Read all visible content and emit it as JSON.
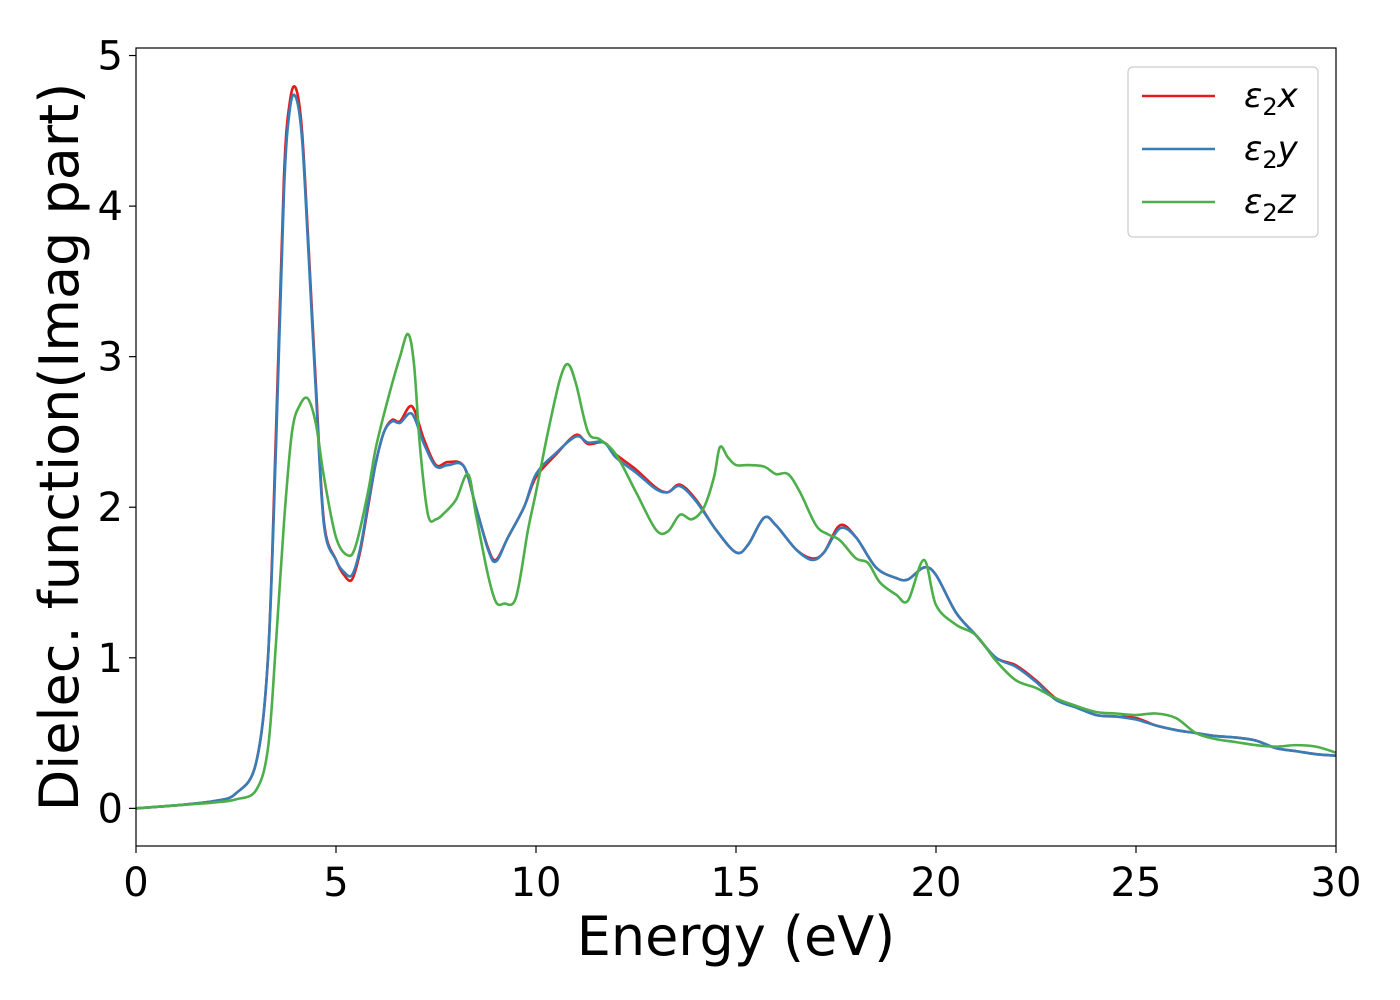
{
  "chart_data": {
    "type": "line",
    "title": "",
    "xlabel": "Energy (eV)",
    "ylabel": "Dielec. function(Imag part)",
    "xlim": [
      0,
      30
    ],
    "ylim": [
      -0.25,
      5.05
    ],
    "xticks": [
      0,
      5,
      10,
      15,
      20,
      25,
      30
    ],
    "yticks": [
      0,
      1,
      2,
      3,
      4,
      5
    ],
    "grid": false,
    "legend_position": "top-right",
    "series": [
      {
        "name": "ε2x",
        "legend_base": "ε",
        "legend_sub": "2",
        "legend_suffix": "x",
        "color": "#e41a1c",
        "x": [
          0,
          1,
          2,
          2.5,
          3,
          3.3,
          3.5,
          3.7,
          3.85,
          4.0,
          4.15,
          4.3,
          4.5,
          4.7,
          5.0,
          5.2,
          5.4,
          5.6,
          5.8,
          6.0,
          6.2,
          6.4,
          6.6,
          6.9,
          7.2,
          7.5,
          7.8,
          8.2,
          8.5,
          8.8,
          9.0,
          9.3,
          9.7,
          10.0,
          10.5,
          11.0,
          11.3,
          11.7,
          12.0,
          12.5,
          13.0,
          13.3,
          13.6,
          14.0,
          14.5,
          15.0,
          15.3,
          15.7,
          16.0,
          16.5,
          16.9,
          17.2,
          17.6,
          18.0,
          18.5,
          19.0,
          19.3,
          19.7,
          20.0,
          20.5,
          21.0,
          21.5,
          22.0,
          22.5,
          23.0,
          23.5,
          24.0,
          24.5,
          25.0,
          25.5,
          26.0,
          26.5,
          27.0,
          27.5,
          28.0,
          28.5,
          29.0,
          29.5,
          30.0
        ],
        "y": [
          0.0,
          0.02,
          0.05,
          0.1,
          0.3,
          1.0,
          2.5,
          4.2,
          4.7,
          4.78,
          4.5,
          3.8,
          2.8,
          1.9,
          1.65,
          1.55,
          1.52,
          1.7,
          2.0,
          2.3,
          2.5,
          2.58,
          2.57,
          2.67,
          2.45,
          2.28,
          2.3,
          2.27,
          2.0,
          1.73,
          1.65,
          1.8,
          2.0,
          2.2,
          2.35,
          2.48,
          2.42,
          2.43,
          2.35,
          2.25,
          2.13,
          2.1,
          2.15,
          2.05,
          1.85,
          1.7,
          1.75,
          1.93,
          1.88,
          1.72,
          1.66,
          1.7,
          1.88,
          1.8,
          1.6,
          1.53,
          1.52,
          1.6,
          1.55,
          1.3,
          1.15,
          1.0,
          0.95,
          0.85,
          0.73,
          0.68,
          0.62,
          0.61,
          0.6,
          0.55,
          0.52,
          0.5,
          0.48,
          0.47,
          0.45,
          0.4,
          0.38,
          0.36,
          0.35
        ]
      },
      {
        "name": "ε2y",
        "legend_base": "ε",
        "legend_sub": "2",
        "legend_suffix": "y",
        "color": "#377eb8",
        "x": [
          0,
          1,
          2,
          2.5,
          3,
          3.3,
          3.5,
          3.7,
          3.85,
          4.0,
          4.15,
          4.3,
          4.5,
          4.7,
          5.0,
          5.2,
          5.4,
          5.6,
          5.8,
          6.0,
          6.2,
          6.4,
          6.6,
          6.9,
          7.2,
          7.5,
          7.8,
          8.2,
          8.5,
          8.8,
          9.0,
          9.3,
          9.7,
          10.0,
          10.5,
          11.0,
          11.3,
          11.7,
          12.0,
          12.5,
          13.0,
          13.3,
          13.6,
          14.0,
          14.5,
          15.0,
          15.3,
          15.7,
          16.0,
          16.5,
          16.9,
          17.2,
          17.6,
          18.0,
          18.5,
          19.0,
          19.3,
          19.7,
          20.0,
          20.5,
          21.0,
          21.5,
          22.0,
          22.5,
          23.0,
          23.5,
          24.0,
          24.5,
          25.0,
          25.5,
          26.0,
          26.5,
          27.0,
          27.5,
          28.0,
          28.5,
          29.0,
          29.5,
          30.0
        ],
        "y": [
          0.0,
          0.02,
          0.05,
          0.1,
          0.3,
          1.0,
          2.4,
          4.1,
          4.65,
          4.72,
          4.45,
          3.75,
          2.75,
          1.88,
          1.65,
          1.57,
          1.55,
          1.72,
          2.02,
          2.3,
          2.5,
          2.57,
          2.56,
          2.62,
          2.42,
          2.27,
          2.28,
          2.27,
          2.0,
          1.72,
          1.64,
          1.8,
          2.0,
          2.22,
          2.36,
          2.47,
          2.43,
          2.43,
          2.33,
          2.23,
          2.12,
          2.1,
          2.14,
          2.04,
          1.85,
          1.7,
          1.75,
          1.93,
          1.88,
          1.72,
          1.65,
          1.7,
          1.86,
          1.8,
          1.6,
          1.53,
          1.52,
          1.6,
          1.55,
          1.3,
          1.15,
          1.0,
          0.94,
          0.84,
          0.72,
          0.67,
          0.62,
          0.61,
          0.59,
          0.55,
          0.52,
          0.5,
          0.48,
          0.47,
          0.45,
          0.4,
          0.38,
          0.36,
          0.35
        ]
      },
      {
        "name": "ε2z",
        "legend_base": "ε",
        "legend_sub": "2",
        "legend_suffix": "z",
        "color": "#4daf4a",
        "x": [
          0,
          1,
          2,
          2.5,
          3,
          3.3,
          3.5,
          3.7,
          3.9,
          4.1,
          4.3,
          4.5,
          4.7,
          5.0,
          5.3,
          5.5,
          5.8,
          6.0,
          6.3,
          6.6,
          6.8,
          6.95,
          7.1,
          7.3,
          7.5,
          7.7,
          8.0,
          8.3,
          8.5,
          8.8,
          9.0,
          9.2,
          9.5,
          9.8,
          10.0,
          10.3,
          10.6,
          10.8,
          11.0,
          11.3,
          11.6,
          12.0,
          12.5,
          13.0,
          13.3,
          13.6,
          13.9,
          14.2,
          14.45,
          14.6,
          14.8,
          15.0,
          15.3,
          15.7,
          16.0,
          16.3,
          16.6,
          17.0,
          17.3,
          17.6,
          18.0,
          18.3,
          18.6,
          19.0,
          19.3,
          19.7,
          20.0,
          20.5,
          21.0,
          21.5,
          22.0,
          22.5,
          23.0,
          23.5,
          24.0,
          24.5,
          25.0,
          25.5,
          26.0,
          26.5,
          27.0,
          27.5,
          28.0,
          28.5,
          29.0,
          29.5,
          30.0
        ],
        "y": [
          0.0,
          0.02,
          0.04,
          0.06,
          0.12,
          0.4,
          1.1,
          1.9,
          2.5,
          2.68,
          2.72,
          2.55,
          2.2,
          1.8,
          1.68,
          1.75,
          2.1,
          2.4,
          2.72,
          3.0,
          3.15,
          2.95,
          2.4,
          1.95,
          1.92,
          1.96,
          2.05,
          2.22,
          1.95,
          1.55,
          1.37,
          1.36,
          1.4,
          1.85,
          2.1,
          2.5,
          2.85,
          2.95,
          2.82,
          2.5,
          2.45,
          2.35,
          2.1,
          1.85,
          1.84,
          1.95,
          1.92,
          2.0,
          2.2,
          2.4,
          2.33,
          2.28,
          2.28,
          2.27,
          2.22,
          2.22,
          2.1,
          1.88,
          1.82,
          1.78,
          1.66,
          1.63,
          1.5,
          1.42,
          1.38,
          1.65,
          1.35,
          1.22,
          1.15,
          0.98,
          0.85,
          0.8,
          0.73,
          0.68,
          0.64,
          0.63,
          0.62,
          0.63,
          0.6,
          0.5,
          0.46,
          0.44,
          0.42,
          0.41,
          0.42,
          0.41,
          0.37
        ]
      }
    ]
  }
}
